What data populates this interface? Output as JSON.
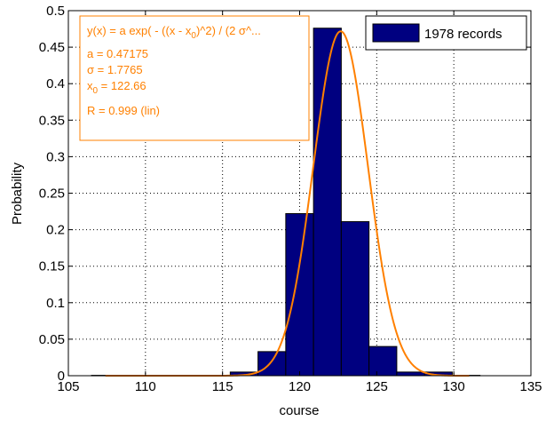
{
  "chart_data": {
    "type": "bar",
    "title": "",
    "xlabel": "course",
    "ylabel": "Probability",
    "xlim": [
      105,
      135
    ],
    "ylim": [
      0,
      0.5
    ],
    "grid": true,
    "legend_position": "top-right",
    "xticks": [
      "105",
      "110",
      "115",
      "120",
      "125",
      "130",
      "135"
    ],
    "yticks": [
      "0",
      "0.05",
      "0.1",
      "0.15",
      "0.2",
      "0.25",
      "0.3",
      "0.35",
      "0.4",
      "0.45",
      "0.5"
    ],
    "series": [
      {
        "name": "1978 records",
        "color": "#000080",
        "bin_width": 1.8,
        "x": [
          107.4,
          109.2,
          111.0,
          112.8,
          114.6,
          116.4,
          118.2,
          120.0,
          121.8,
          123.6,
          125.4,
          127.2,
          129.0,
          130.8
        ],
        "values": [
          0.0005,
          0.0005,
          0.0005,
          0.0005,
          0.0005,
          0.005,
          0.033,
          0.222,
          0.476,
          0.211,
          0.04,
          0.005,
          0.005,
          0.0005
        ]
      }
    ],
    "fit": {
      "type": "gaussian",
      "color": "#ff8000",
      "a": 0.47175,
      "sigma": 1.7765,
      "x0": 122.66,
      "x_range": [
        107.4,
        131
      ],
      "text": {
        "formula_part1": "y(x) = a exp( - ((x - x",
        "formula_sub": "0",
        "formula_part2": ")^2) / (2 σ^...",
        "a_line": "a = 0.47175",
        "sigma_line": "σ = 1.7765",
        "x0_label": "x",
        "x0_sub": "0",
        "x0_value": " = 122.66",
        "r_line": "R = 0.999  (lin)"
      }
    }
  }
}
